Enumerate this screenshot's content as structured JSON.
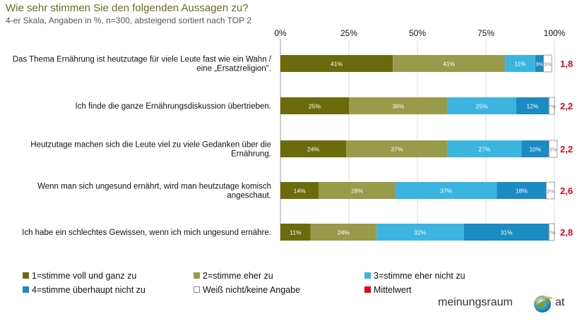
{
  "title": "Wie sehr stimmen Sie den folgenden Aussagen zu?",
  "subtitle": "4-er Skala, Angaben in %, n=300, absteigend sortiert nach TOP 2",
  "chart_data": {
    "type": "bar",
    "orientation": "horizontal",
    "stacked": true,
    "xlim": [
      0,
      100
    ],
    "xticks": [
      "0%",
      "25%",
      "50%",
      "75%",
      "100%"
    ],
    "categories": [
      [
        "Das Thema Ernährung ist heutzutage für viele Leute fast wie ein Wahn /",
        "eine „Ersatzreligion\"."
      ],
      [
        "Ich finde die ganze Ernährungsdiskussion übertrieben."
      ],
      [
        "Heutzutage machen sich die Leute viel zu viele Gedanken über die",
        "Ernährung."
      ],
      [
        "Wenn man sich ungesund ernährt, wird man heutzutage komisch",
        "angeschaut."
      ],
      [
        "Ich habe ein schlechtes Gewissen, wenn ich mich ungesund ernähre."
      ]
    ],
    "series": [
      {
        "name": "1=stimme voll und ganz zu",
        "color": "#6b6b0d",
        "values": [
          41,
          25,
          24,
          14,
          11
        ],
        "labels": [
          "41%",
          "25%",
          "24%",
          "14%",
          "11%"
        ]
      },
      {
        "name": "2=stimme eher zu",
        "color": "#999a4a",
        "values": [
          41,
          36,
          37,
          28,
          24
        ],
        "labels": [
          "41%",
          "36%",
          "37%",
          "28%",
          "24%"
        ]
      },
      {
        "name": "3=stimme eher nicht zu",
        "color": "#3bb5df",
        "values": [
          11,
          25,
          27,
          37,
          32
        ],
        "labels": [
          "11%",
          "25%",
          "27%",
          "37%",
          "32%"
        ]
      },
      {
        "name": "4=stimme überhaupt nicht zu",
        "color": "#1a8bc3",
        "values": [
          3,
          12,
          10,
          18,
          31
        ],
        "labels": [
          "3%",
          "12%",
          "10%",
          "18%",
          "31%"
        ]
      },
      {
        "name": "Weiß nicht/keine Angabe",
        "color": "#ffffff",
        "values": [
          3,
          2,
          3,
          3,
          2
        ],
        "labels": [
          "3%",
          "2%",
          "3%",
          "3%",
          "2%"
        ]
      }
    ],
    "mittelwert": {
      "name": "Mittelwert",
      "color": "#e3001b",
      "values": [
        "1,8",
        "2,2",
        "2,2",
        "2,6",
        "2,8"
      ]
    }
  },
  "legend": [
    {
      "label": "1=stimme voll und ganz zu",
      "color": "#6b6b0d"
    },
    {
      "label": "2=stimme eher zu",
      "color": "#999a4a"
    },
    {
      "label": "3=stimme eher nicht zu",
      "color": "#3bb5df"
    },
    {
      "label": "4=stimme überhaupt nicht zu",
      "color": "#1a8bc3"
    },
    {
      "label": "Weiß nicht/keine Angabe",
      "color": "#ffffff"
    },
    {
      "label": "Mittelwert",
      "color": "#e3001b"
    }
  ],
  "logo": {
    "text": "meinungsraum",
    "suffix": "at"
  }
}
